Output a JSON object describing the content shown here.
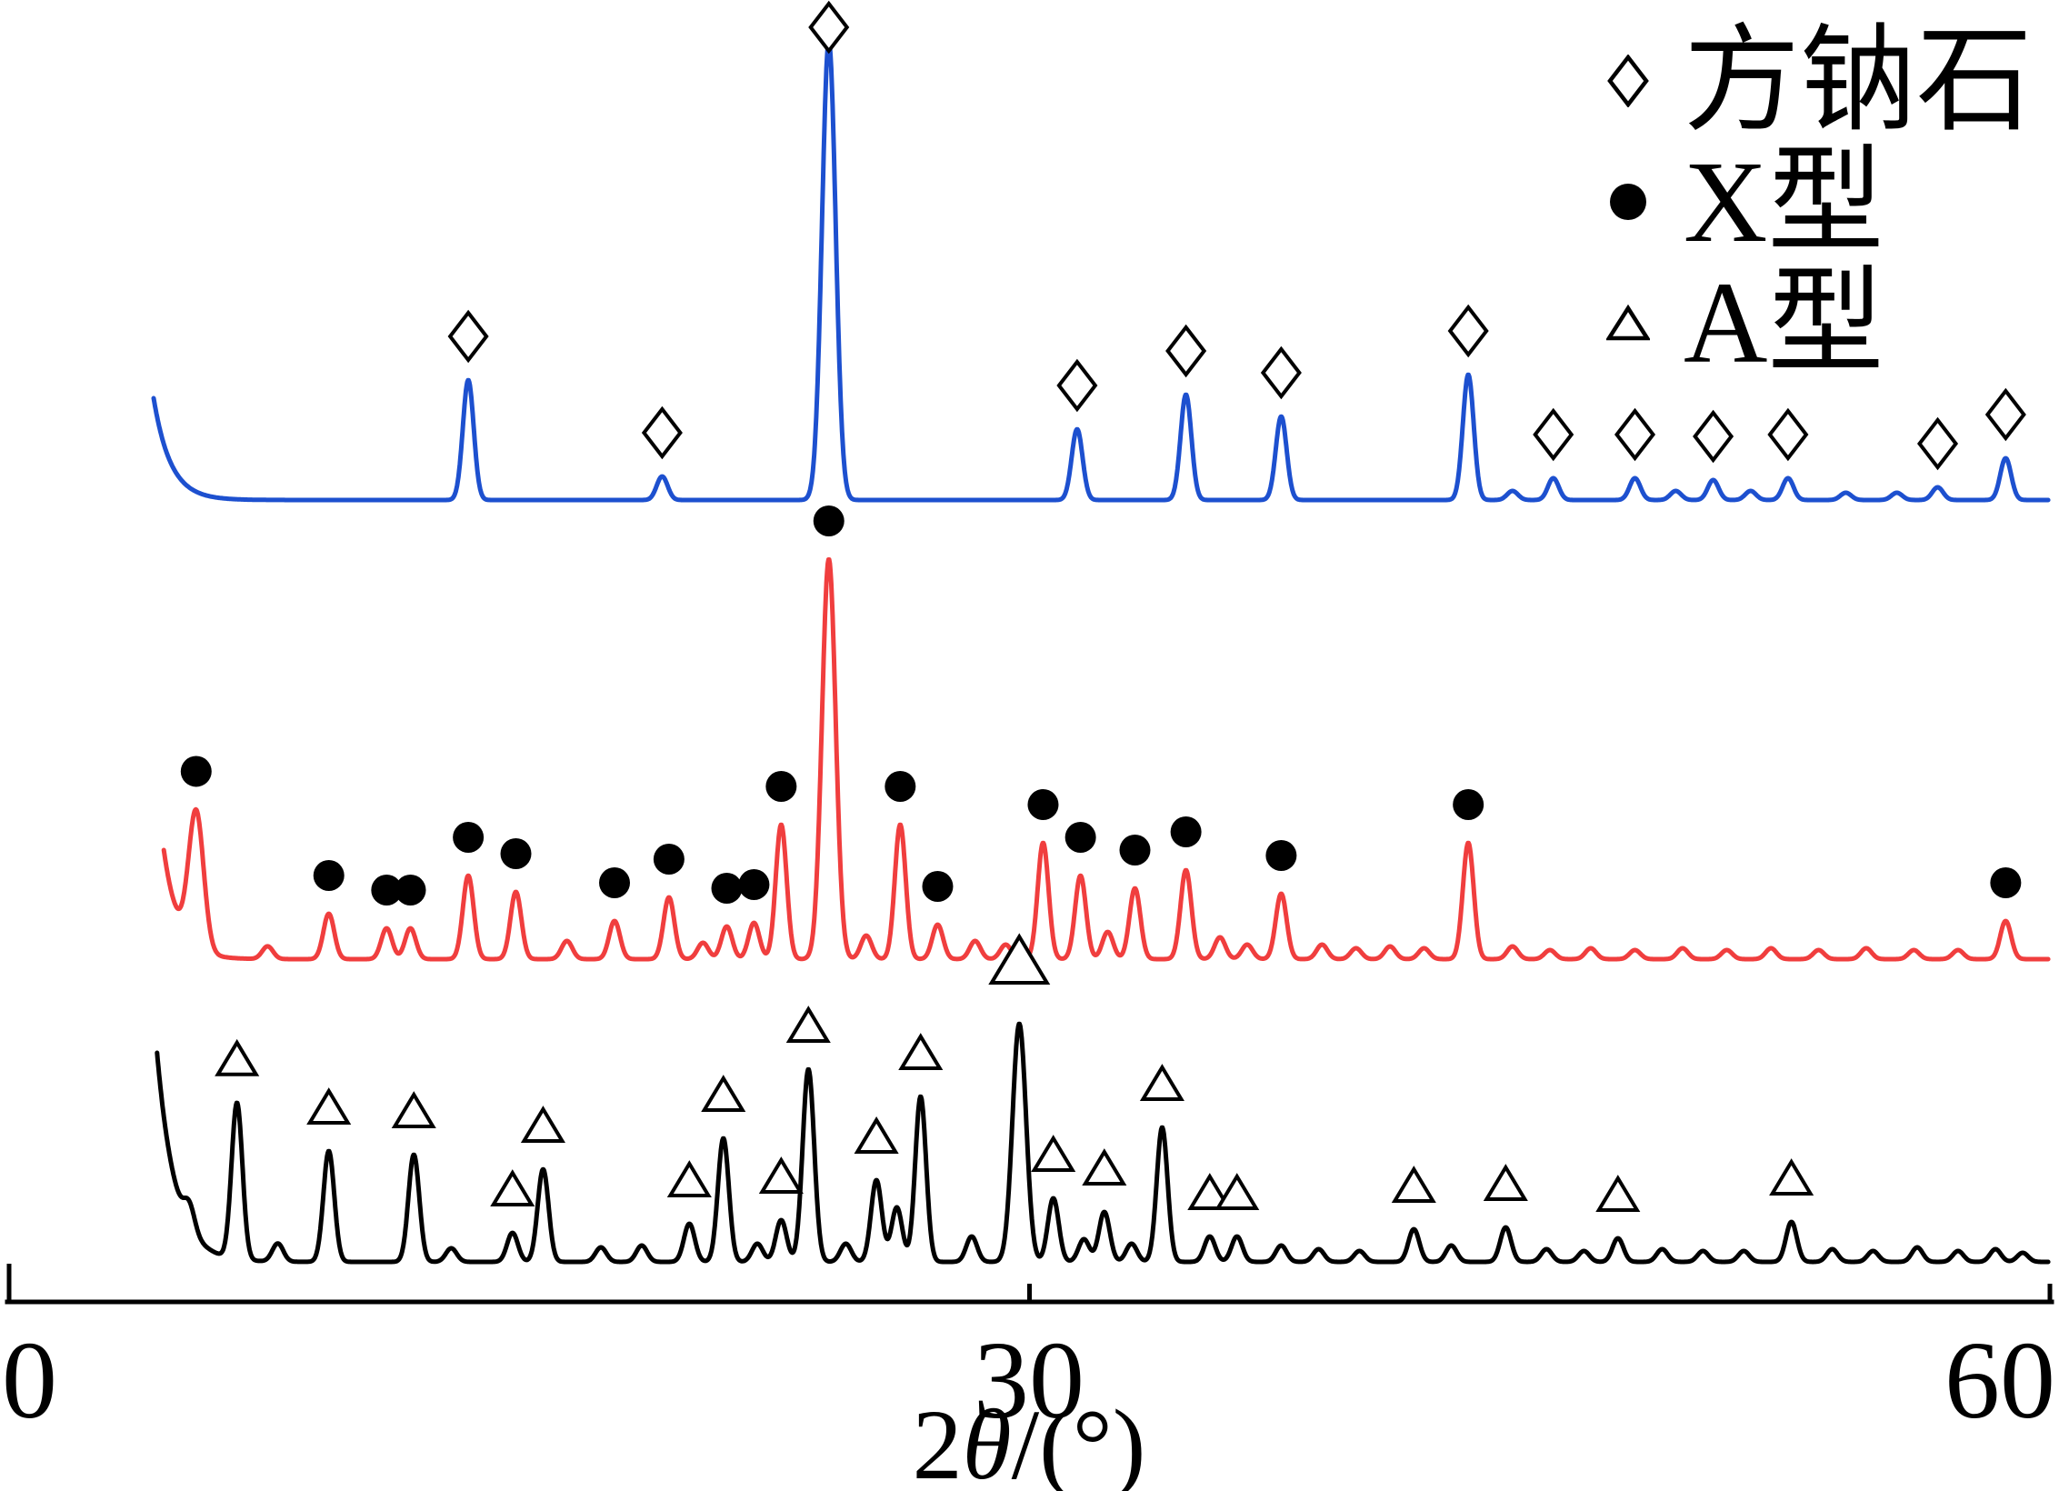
{
  "figure": {
    "type": "xrd-pattern-comparison"
  },
  "axis": {
    "tick_labels": [
      "0",
      "30",
      "60"
    ],
    "title_prefix": "2",
    "title_theta": "θ",
    "title_suffix": "/(°)"
  },
  "legend": {
    "items": [
      {
        "id": "sodalite",
        "marker": "diamond-open",
        "label": "方钠石"
      },
      {
        "id": "zeolite-x",
        "marker": "circle-filled",
        "label": "X型"
      },
      {
        "id": "zeolite-a",
        "marker": "triangle-open",
        "label": "A型"
      }
    ]
  },
  "colors": {
    "sodalite": "#1d50cf",
    "zeolite_x": "#f03e3e",
    "zeolite_a": "#000000"
  },
  "chart_data": {
    "type": "line",
    "title": "",
    "xlabel": "2θ/(°)",
    "ylabel": "",
    "x_range": [
      0,
      60
    ],
    "x_ticks": [
      0,
      30,
      60
    ],
    "peak_format": "[two_theta_deg, height_px, sigma_deg_optional]",
    "marker_format": "[two_theta_deg, size_scale_optional]",
    "series": [
      {
        "id": "sodalite",
        "name": "方钠石",
        "marker": "diamond-open",
        "color": "#1d50cf",
        "baseline": 550,
        "start": 4.25,
        "background": {
          "amp": 112,
          "tau": 0.5
        },
        "peaks": [
          [
            13.5,
            132
          ],
          [
            19.2,
            26
          ],
          [
            24.1,
            505,
            0.2
          ],
          [
            31.4,
            78
          ],
          [
            34.6,
            116
          ],
          [
            37.4,
            92
          ],
          [
            42.9,
            138
          ],
          [
            44.2,
            10
          ],
          [
            45.4,
            24
          ],
          [
            47.8,
            24
          ],
          [
            49.0,
            10
          ],
          [
            50.1,
            22
          ],
          [
            51.2,
            10
          ],
          [
            52.3,
            24
          ],
          [
            54.0,
            8
          ],
          [
            55.5,
            8
          ],
          [
            56.7,
            14
          ],
          [
            58.7,
            46
          ]
        ],
        "marked_peaks": [
          [
            13.5
          ],
          [
            19.2
          ],
          [
            24.1
          ],
          [
            31.4
          ],
          [
            34.6
          ],
          [
            37.4
          ],
          [
            42.9
          ],
          [
            45.4
          ],
          [
            47.8
          ],
          [
            50.1
          ],
          [
            52.3
          ],
          [
            56.7
          ],
          [
            58.7
          ]
        ]
      },
      {
        "id": "zeolite-x",
        "name": "X型",
        "marker": "circle-filled",
        "color": "#f03e3e",
        "baseline": 1055,
        "start": 4.55,
        "background": {
          "amp": 120,
          "tau": 0.45
        },
        "peaks": [
          [
            5.5,
            150,
            0.22
          ],
          [
            7.6,
            14
          ],
          [
            9.4,
            50
          ],
          [
            11.1,
            34
          ],
          [
            11.8,
            34
          ],
          [
            13.5,
            92
          ],
          [
            14.9,
            74
          ],
          [
            16.4,
            20
          ],
          [
            17.8,
            42
          ],
          [
            19.4,
            68
          ],
          [
            20.4,
            18
          ],
          [
            21.1,
            36
          ],
          [
            21.9,
            40
          ],
          [
            22.7,
            148
          ],
          [
            24.1,
            440,
            0.2
          ],
          [
            25.2,
            26
          ],
          [
            26.2,
            148
          ],
          [
            27.3,
            38
          ],
          [
            28.4,
            20
          ],
          [
            29.3,
            16
          ],
          [
            30.4,
            128
          ],
          [
            31.5,
            92
          ],
          [
            32.3,
            30
          ],
          [
            33.1,
            78
          ],
          [
            34.6,
            98
          ],
          [
            35.6,
            24
          ],
          [
            36.4,
            16
          ],
          [
            37.4,
            72
          ],
          [
            38.6,
            16
          ],
          [
            39.6,
            12
          ],
          [
            40.6,
            14
          ],
          [
            41.6,
            12
          ],
          [
            42.9,
            128
          ],
          [
            44.2,
            14
          ],
          [
            45.3,
            10
          ],
          [
            46.5,
            12
          ],
          [
            47.8,
            10
          ],
          [
            49.2,
            12
          ],
          [
            50.5,
            10
          ],
          [
            51.8,
            12
          ],
          [
            53.2,
            10
          ],
          [
            54.6,
            12
          ],
          [
            56.0,
            10
          ],
          [
            57.3,
            10
          ],
          [
            58.7,
            42
          ]
        ],
        "marked_peaks": [
          [
            5.5
          ],
          [
            9.4
          ],
          [
            11.1
          ],
          [
            11.8
          ],
          [
            13.5
          ],
          [
            14.9
          ],
          [
            17.8
          ],
          [
            19.4
          ],
          [
            21.1
          ],
          [
            21.9
          ],
          [
            22.7
          ],
          [
            24.1
          ],
          [
            26.2
          ],
          [
            27.3
          ],
          [
            30.4
          ],
          [
            31.5
          ],
          [
            33.1
          ],
          [
            34.6
          ],
          [
            37.4
          ],
          [
            42.9
          ],
          [
            58.7
          ]
        ]
      },
      {
        "id": "zeolite-a",
        "name": "A型",
        "marker": "triangle-open",
        "color": "#000000",
        "baseline": 1388,
        "start": 4.35,
        "background": {
          "amp": 230,
          "tau": 0.55
        },
        "peaks": [
          [
            5.3,
            26
          ],
          [
            6.7,
            172
          ],
          [
            7.9,
            20
          ],
          [
            9.4,
            122
          ],
          [
            11.9,
            118
          ],
          [
            13.0,
            15
          ],
          [
            14.8,
            32
          ],
          [
            15.7,
            102
          ],
          [
            17.4,
            16
          ],
          [
            18.6,
            18
          ],
          [
            20.0,
            42
          ],
          [
            21.0,
            136
          ],
          [
            22.0,
            20
          ],
          [
            22.7,
            46
          ],
          [
            23.5,
            212,
            0.17
          ],
          [
            24.6,
            20
          ],
          [
            25.5,
            90
          ],
          [
            26.1,
            60
          ],
          [
            26.8,
            182
          ],
          [
            28.3,
            28
          ],
          [
            29.7,
            262,
            0.2
          ],
          [
            30.7,
            70
          ],
          [
            31.6,
            25
          ],
          [
            32.2,
            55
          ],
          [
            33.0,
            20
          ],
          [
            33.9,
            148
          ],
          [
            35.3,
            28
          ],
          [
            36.1,
            28
          ],
          [
            37.4,
            18
          ],
          [
            38.5,
            14
          ],
          [
            39.7,
            12
          ],
          [
            41.3,
            36
          ],
          [
            42.4,
            18
          ],
          [
            44.0,
            38
          ],
          [
            45.2,
            14
          ],
          [
            46.3,
            12
          ],
          [
            47.3,
            26
          ],
          [
            48.6,
            14
          ],
          [
            49.8,
            12
          ],
          [
            51.0,
            12
          ],
          [
            52.4,
            44
          ],
          [
            53.6,
            14
          ],
          [
            54.8,
            12
          ],
          [
            56.1,
            16
          ],
          [
            57.3,
            12
          ],
          [
            58.4,
            14
          ],
          [
            59.2,
            10
          ]
        ],
        "marked_peaks": [
          [
            6.7
          ],
          [
            9.4
          ],
          [
            11.9
          ],
          [
            14.8
          ],
          [
            15.7
          ],
          [
            20.0
          ],
          [
            21.0
          ],
          [
            22.7
          ],
          [
            23.5
          ],
          [
            25.5
          ],
          [
            26.8
          ],
          [
            29.7,
            1.45
          ],
          [
            30.7
          ],
          [
            32.2
          ],
          [
            33.9
          ],
          [
            35.3
          ],
          [
            36.1
          ],
          [
            41.3
          ],
          [
            44.0
          ],
          [
            47.3
          ],
          [
            52.4
          ]
        ]
      }
    ]
  }
}
